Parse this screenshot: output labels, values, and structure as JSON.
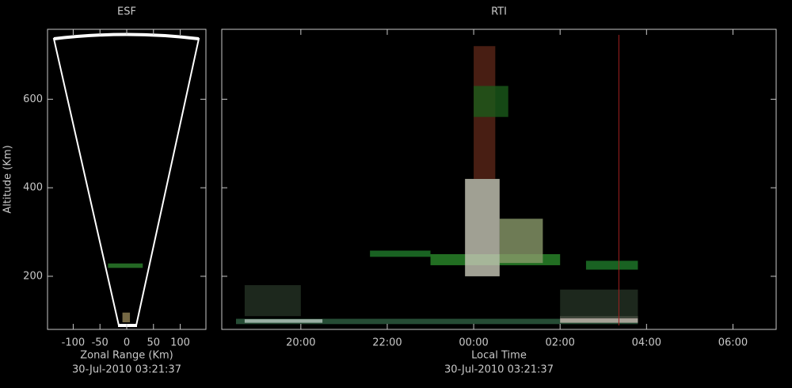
{
  "chart_data": [
    {
      "type": "esf",
      "title": "ESF",
      "xlabel": "Zonal Range (Km)",
      "ylabel": "Altitude (Km)",
      "subtitle": "30-Jul-2010 03:21:37",
      "xlim": [
        -148,
        148
      ],
      "xticks": [
        -100,
        -50,
        0,
        50,
        100
      ],
      "ylim": [
        80,
        758
      ],
      "yticks": [
        200,
        400,
        600
      ],
      "echoes": [
        {
          "x": [
            -35,
            30
          ],
          "alt": [
            219,
            229
          ],
          "color": "#2a7a2a"
        },
        {
          "x": [
            -8,
            6
          ],
          "alt": [
            96,
            118
          ],
          "color": "#8a7a50"
        }
      ]
    },
    {
      "type": "rti",
      "title": "RTI",
      "xlabel": "Local Time",
      "subtitle": "30-Jul-2010 03:21:37",
      "xlim": [
        18.17,
        31.0
      ],
      "xticks": [
        {
          "value": 20,
          "label": "20:00"
        },
        {
          "value": 22,
          "label": "22:00"
        },
        {
          "value": 24,
          "label": "00:00"
        },
        {
          "value": 26,
          "label": "02:00"
        },
        {
          "value": 28,
          "label": "04:00"
        },
        {
          "value": 30,
          "label": "06:00"
        }
      ],
      "ylim": [
        80,
        758
      ],
      "yticks": [
        200,
        400,
        600
      ],
      "cursor": 27.36,
      "cursor_color": "#a02020",
      "echoes": [
        {
          "t": [
            18.5,
            27.8
          ],
          "alt": [
            92,
            104
          ],
          "color": "#2f5f42"
        },
        {
          "t": [
            18.7,
            20.5
          ],
          "alt": [
            95,
            103
          ],
          "color": "#b8c8c0"
        },
        {
          "t": [
            26.0,
            27.8
          ],
          "alt": [
            95,
            110
          ],
          "color": "#c8b8b0"
        },
        {
          "t": [
            18.7,
            20.0
          ],
          "alt": [
            110,
            180
          ],
          "color": "#243224"
        },
        {
          "t": [
            26.0,
            27.8
          ],
          "alt": [
            105,
            170
          ],
          "color": "#243224"
        },
        {
          "t": [
            21.6,
            23.0
          ],
          "alt": [
            244,
            258
          ],
          "color": "#1f7a2a"
        },
        {
          "t": [
            23.0,
            26.0
          ],
          "alt": [
            225,
            250
          ],
          "color": "#2a8a2a"
        },
        {
          "t": [
            26.6,
            27.8
          ],
          "alt": [
            215,
            235
          ],
          "color": "#1f7a2a"
        },
        {
          "t": [
            24.6,
            25.6
          ],
          "alt": [
            230,
            330
          ],
          "color": "#8a9a6a"
        },
        {
          "t": [
            23.8,
            24.6
          ],
          "alt": [
            200,
            420
          ],
          "color": "#c8c8b8"
        },
        {
          "t": [
            24.0,
            24.5
          ],
          "alt": [
            420,
            720
          ],
          "color": "#5a2618"
        },
        {
          "t": [
            24.0,
            24.8
          ],
          "alt": [
            560,
            630
          ],
          "color": "#1a5a1a"
        }
      ]
    }
  ]
}
